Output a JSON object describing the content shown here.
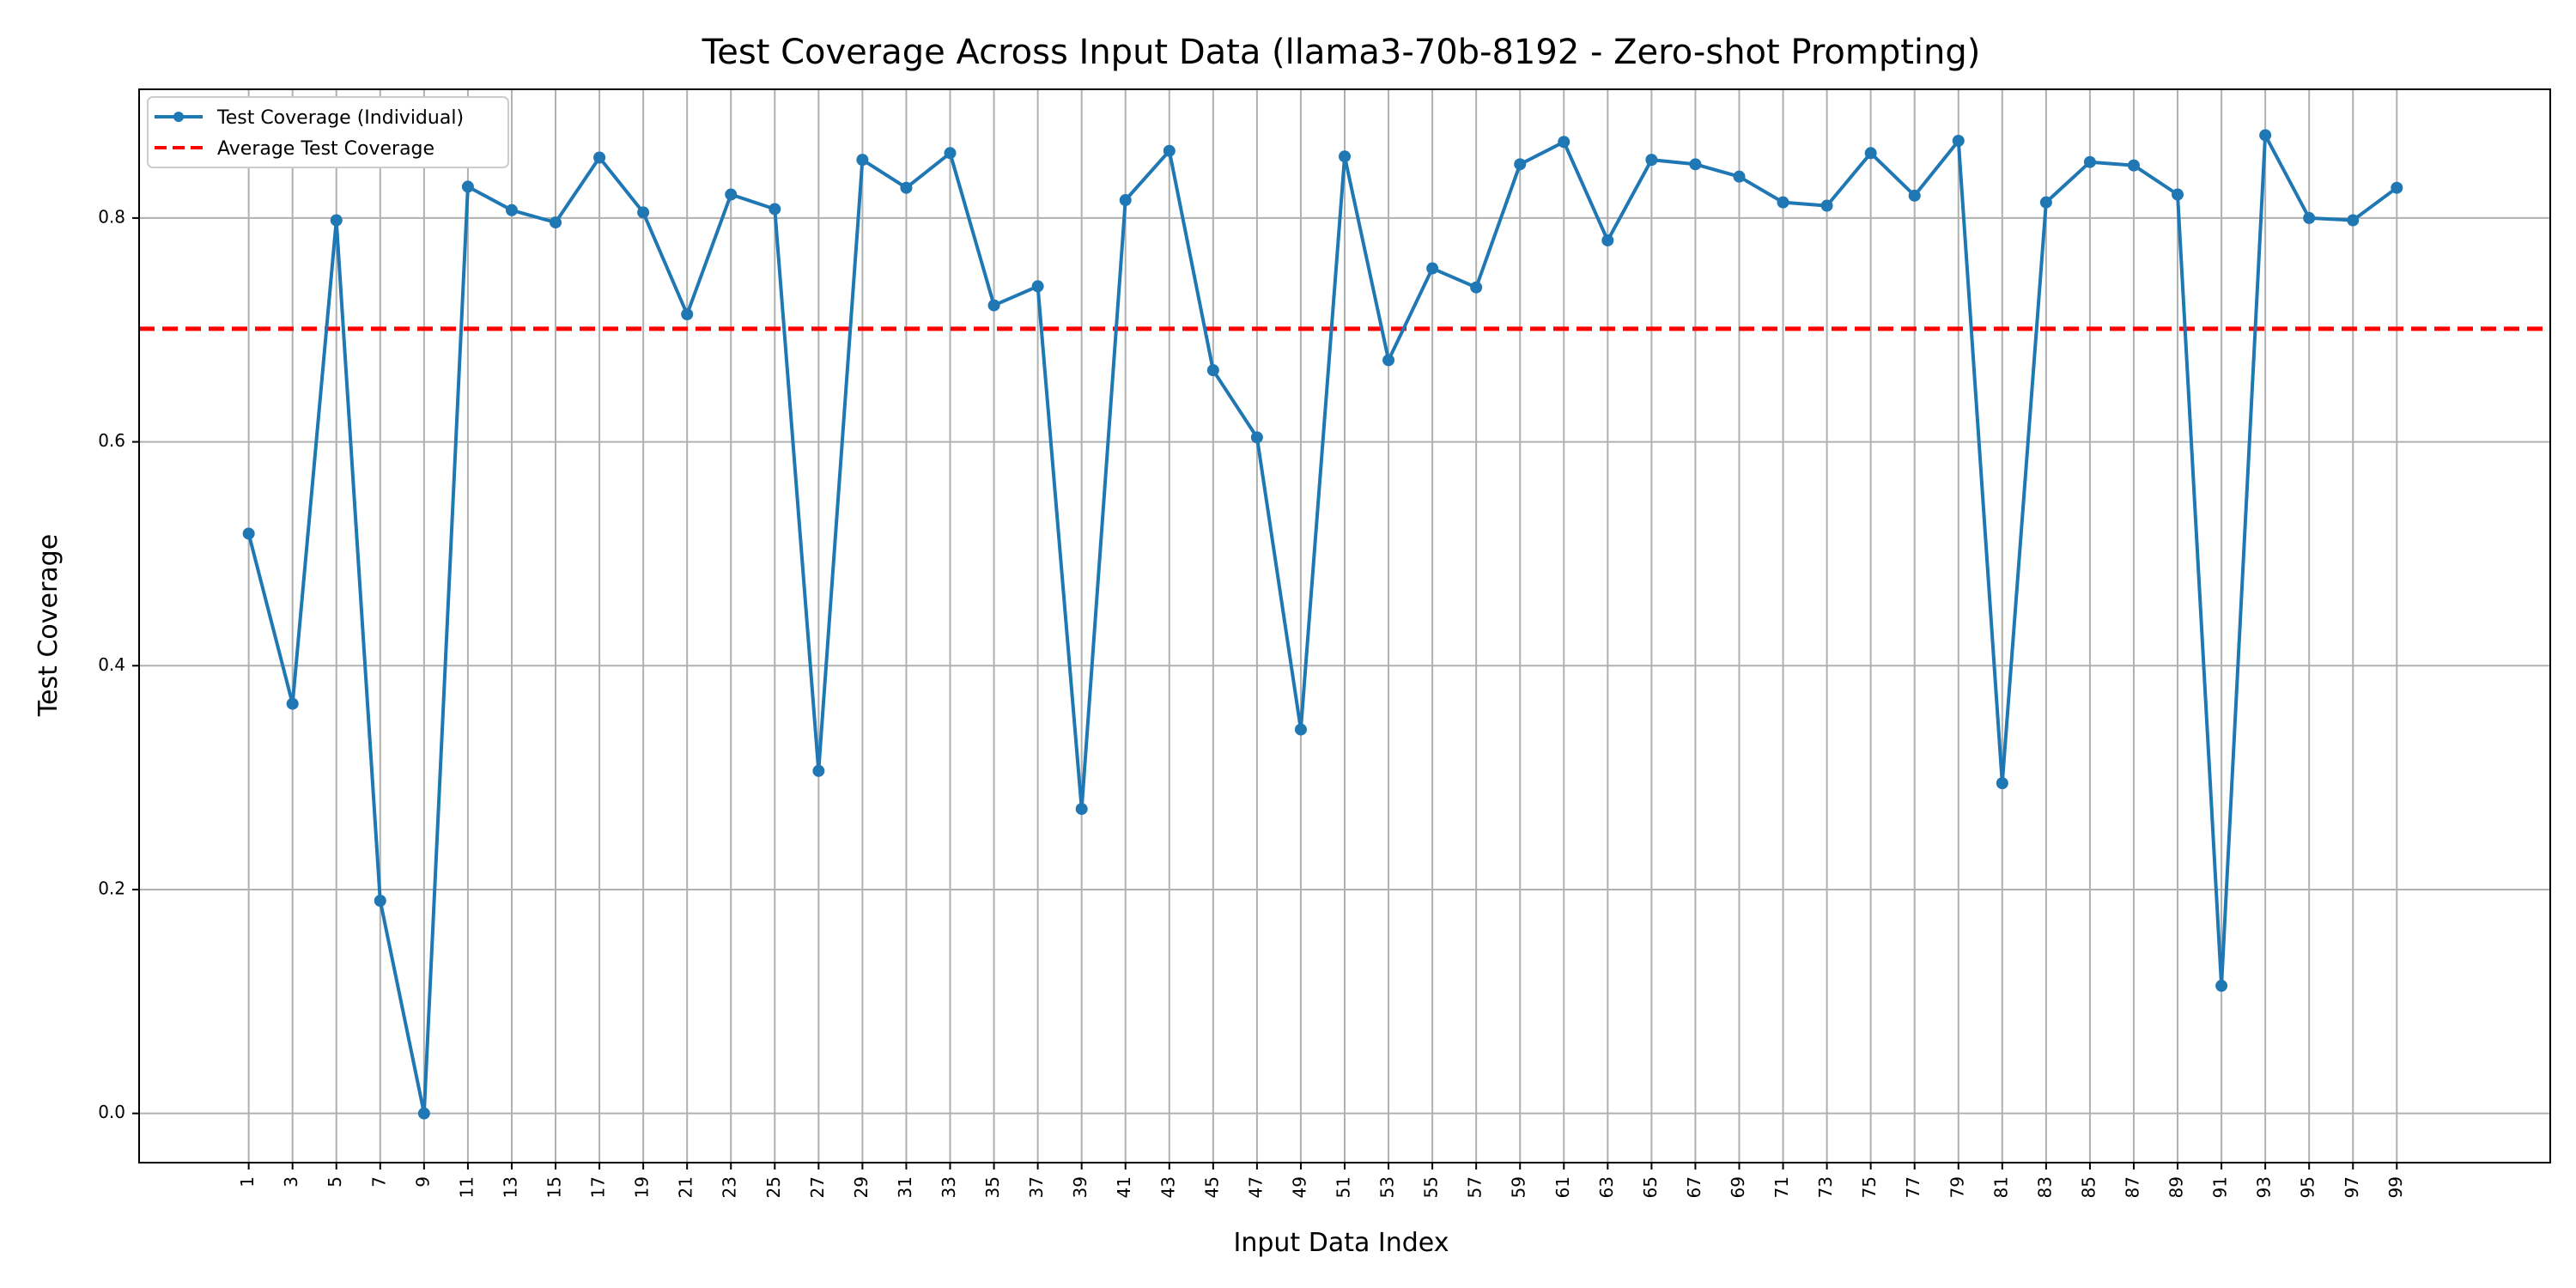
{
  "chart_data": {
    "type": "line",
    "title": "Test Coverage Across Input Data (llama3-70b-8192 - Zero-shot Prompting)",
    "xlabel": "Input Data Index",
    "ylabel": "Test Coverage",
    "xlim": [
      -4,
      106
    ],
    "ylim": [
      -0.044,
      0.915
    ],
    "grid": true,
    "legend_position": "top-left",
    "x_ticks": [
      1,
      3,
      5,
      7,
      9,
      11,
      13,
      15,
      17,
      19,
      21,
      23,
      25,
      27,
      29,
      31,
      33,
      35,
      37,
      39,
      41,
      43,
      45,
      47,
      49,
      51,
      53,
      55,
      57,
      59,
      61,
      63,
      65,
      67,
      69,
      71,
      73,
      75,
      77,
      79,
      81,
      83,
      85,
      87,
      89,
      91,
      93,
      95,
      97,
      99
    ],
    "x_tick_labels": [
      "1",
      "3",
      "5",
      "7",
      "9",
      "11",
      "13",
      "15",
      "17",
      "19",
      "21",
      "23",
      "25",
      "27",
      "29",
      "31",
      "33",
      "35",
      "37",
      "39",
      "41",
      "43",
      "45",
      "47",
      "49",
      "51",
      "53",
      "55",
      "57",
      "59",
      "61",
      "63",
      "65",
      "67",
      "69",
      "71",
      "73",
      "75",
      "77",
      "79",
      "81",
      "83",
      "85",
      "87",
      "89",
      "91",
      "93",
      "95",
      "97",
      "99"
    ],
    "y_ticks": [
      0.0,
      0.2,
      0.4,
      0.6,
      0.8
    ],
    "y_tick_labels": [
      "0.0",
      "0.2",
      "0.4",
      "0.6",
      "0.8"
    ],
    "series": [
      {
        "name": "Test Coverage (Individual)",
        "color": "#1f77b4",
        "style": "solid-with-markers",
        "x": [
          1,
          3,
          5,
          7,
          9,
          11,
          13,
          15,
          17,
          19,
          21,
          23,
          25,
          27,
          29,
          31,
          33,
          35,
          37,
          39,
          41,
          43,
          45,
          47,
          49,
          51,
          53,
          55,
          57,
          59,
          61,
          63,
          65,
          67,
          69,
          71,
          73,
          75,
          77,
          79,
          81,
          83,
          85,
          87,
          89,
          91,
          93,
          95,
          97,
          99
        ],
        "values": [
          0.518,
          0.366,
          0.798,
          0.19,
          0.0,
          0.828,
          0.807,
          0.796,
          0.854,
          0.805,
          0.714,
          0.821,
          0.808,
          0.306,
          0.852,
          0.827,
          0.858,
          0.722,
          0.739,
          0.272,
          0.816,
          0.86,
          0.664,
          0.604,
          0.343,
          0.855,
          0.673,
          0.755,
          0.738,
          0.848,
          0.868,
          0.78,
          0.852,
          0.848,
          0.837,
          0.814,
          0.811,
          0.858,
          0.82,
          0.869,
          0.295,
          0.814,
          0.85,
          0.847,
          0.821,
          0.114,
          0.874,
          0.8,
          0.798,
          0.827
        ]
      },
      {
        "name": "Average Test Coverage",
        "color": "#ff0000",
        "style": "dashed-horizontal",
        "value": 0.701
      }
    ]
  }
}
